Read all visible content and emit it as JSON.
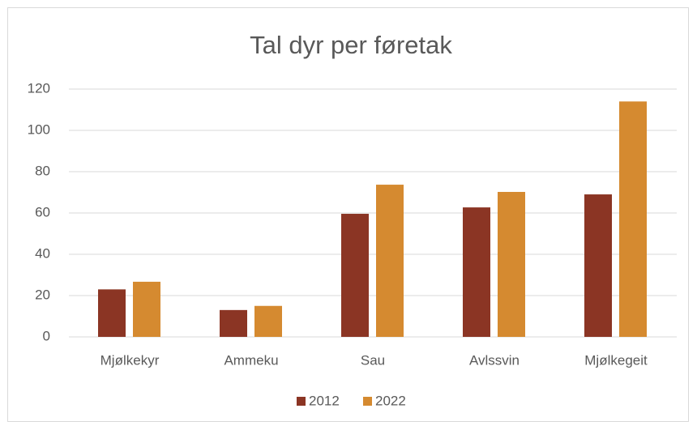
{
  "chart_data": {
    "type": "bar",
    "title": "Tal dyr per føretak",
    "categories": [
      "Mjølkekyr",
      "Ammeku",
      "Sau",
      "Avlssvin",
      "Mjølkegeit"
    ],
    "series": [
      {
        "name": "2012",
        "color": "#8b3524",
        "values": [
          23,
          13,
          59.6,
          62.7,
          69
        ]
      },
      {
        "name": "2022",
        "color": "#d58a30",
        "values": [
          26.7,
          15,
          73.7,
          70.2,
          114
        ]
      }
    ],
    "ylim": [
      0,
      120
    ],
    "yticks": [
      0,
      20,
      40,
      60,
      80,
      100,
      120
    ],
    "grid": true,
    "legend": "bottom"
  }
}
